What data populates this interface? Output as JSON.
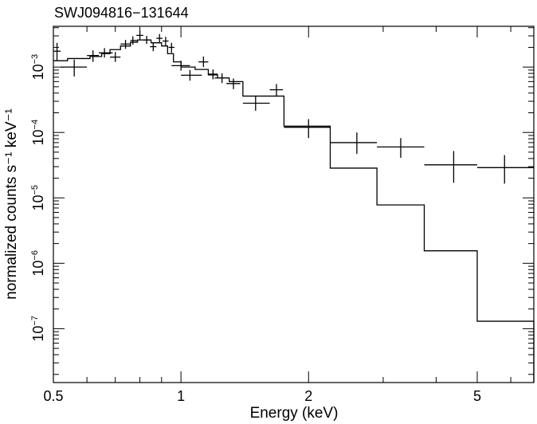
{
  "chart_data": {
    "type": "scatter",
    "title": "SWJ094816−131644",
    "xlabel": "Energy (keV)",
    "ylabel": "normalized counts s⁻¹ keV⁻¹",
    "xscale": "log",
    "yscale": "log",
    "xlim": [
      0.5,
      6.8
    ],
    "ylim": [
      1.5e-08,
      0.0042
    ],
    "x_ticks": [
      {
        "value": 0.5,
        "label": "0.5"
      },
      {
        "value": 1,
        "label": "1"
      },
      {
        "value": 2,
        "label": "2"
      },
      {
        "value": 5,
        "label": "5"
      }
    ],
    "y_ticks": [
      {
        "value": 1e-07,
        "base": "10",
        "exp": "−7"
      },
      {
        "value": 1e-06,
        "base": "10",
        "exp": "−6"
      },
      {
        "value": 1e-05,
        "base": "10",
        "exp": "−5"
      },
      {
        "value": 0.0001,
        "base": "10",
        "exp": "−4"
      },
      {
        "value": 0.001,
        "base": "10",
        "exp": "−3"
      }
    ],
    "series": [
      {
        "kind": "data",
        "points": [
          {
            "x": 0.51,
            "xerr": [
              0.5,
              0.52
            ],
            "y": 0.00175,
            "yerr": [
              0.00125,
              0.00235
            ]
          },
          {
            "x": 0.56,
            "xerr": [
              0.52,
              0.6
            ],
            "y": 0.001,
            "yerr": [
              0.00072,
              0.0013
            ]
          },
          {
            "x": 0.62,
            "xerr": [
              0.6,
              0.64
            ],
            "y": 0.0015,
            "yerr": [
              0.0012,
              0.0018
            ]
          },
          {
            "x": 0.66,
            "xerr": [
              0.64,
              0.69
            ],
            "y": 0.00165,
            "yerr": [
              0.0014,
              0.00195
            ]
          },
          {
            "x": 0.7,
            "xerr": [
              0.68,
              0.72
            ],
            "y": 0.00142,
            "yerr": [
              0.0012,
              0.0017
            ]
          },
          {
            "x": 0.74,
            "xerr": [
              0.72,
              0.76
            ],
            "y": 0.00225,
            "yerr": [
              0.0019,
              0.0026
            ]
          },
          {
            "x": 0.77,
            "xerr": [
              0.76,
              0.79
            ],
            "y": 0.00255,
            "yerr": [
              0.0022,
              0.00295
            ]
          },
          {
            "x": 0.8,
            "xerr": [
              0.785,
              0.815
            ],
            "y": 0.00305,
            "yerr": [
              0.0026,
              0.0036
            ]
          },
          {
            "x": 0.83,
            "xerr": [
              0.815,
              0.845
            ],
            "y": 0.0026,
            "yerr": [
              0.00225,
              0.003
            ]
          },
          {
            "x": 0.86,
            "xerr": [
              0.845,
              0.875
            ],
            "y": 0.00205,
            "yerr": [
              0.00175,
              0.0024
            ]
          },
          {
            "x": 0.89,
            "xerr": [
              0.875,
              0.905
            ],
            "y": 0.00275,
            "yerr": [
              0.00235,
              0.0032
            ]
          },
          {
            "x": 0.92,
            "xerr": [
              0.905,
              0.935
            ],
            "y": 0.0025,
            "yerr": [
              0.0021,
              0.0029
            ]
          },
          {
            "x": 0.95,
            "xerr": [
              0.935,
              0.965
            ],
            "y": 0.002,
            "yerr": [
              0.00165,
              0.00235
            ]
          },
          {
            "x": 1.0,
            "xerr": [
              0.95,
              1.05
            ],
            "y": 0.00105,
            "yerr": [
              0.00088,
              0.00125
            ]
          },
          {
            "x": 1.05,
            "xerr": [
              1.0,
              1.12
            ],
            "y": 0.00075,
            "yerr": [
              0.00062,
              0.0009
            ]
          },
          {
            "x": 1.13,
            "xerr": [
              1.1,
              1.16
            ],
            "y": 0.0012,
            "yerr": [
              0.001,
              0.00145
            ]
          },
          {
            "x": 1.19,
            "xerr": [
              1.16,
              1.22
            ],
            "y": 0.00078,
            "yerr": [
              0.00065,
              0.00092
            ]
          },
          {
            "x": 1.25,
            "xerr": [
              1.2,
              1.3
            ],
            "y": 0.00068,
            "yerr": [
              0.00057,
              0.0008
            ]
          },
          {
            "x": 1.33,
            "xerr": [
              1.28,
              1.38
            ],
            "y": 0.00056,
            "yerr": [
              0.00046,
              0.00067
            ]
          },
          {
            "x": 1.5,
            "xerr": [
              1.4,
              1.62
            ],
            "y": 0.00028,
            "yerr": [
              0.000215,
              0.00036
            ]
          },
          {
            "x": 1.68,
            "xerr": [
              1.62,
              1.74
            ],
            "y": 0.00045,
            "yerr": [
              0.00036,
              0.00055
            ]
          },
          {
            "x": 2.0,
            "xerr": [
              1.75,
              2.25
            ],
            "y": 0.00012,
            "yerr": [
              8.2e-05,
              0.00016
            ]
          },
          {
            "x": 2.6,
            "xerr": [
              2.25,
              2.9
            ],
            "y": 7e-05,
            "yerr": [
              4.7e-05,
              0.0001
            ]
          },
          {
            "x": 3.3,
            "xerr": [
              2.9,
              3.75
            ],
            "y": 6e-05,
            "yerr": [
              4.1e-05,
              8.2e-05
            ]
          },
          {
            "x": 4.4,
            "xerr": [
              3.75,
              5.0
            ],
            "y": 3.2e-05,
            "yerr": [
              1.7e-05,
              5.2e-05
            ]
          },
          {
            "x": 5.8,
            "xerr": [
              5.0,
              6.8
            ],
            "y": 2.9e-05,
            "yerr": [
              1.65e-05,
              4.5e-05
            ]
          }
        ]
      },
      {
        "kind": "model",
        "steps": [
          {
            "x0": 0.5,
            "x1": 0.54,
            "y": 0.00125
          },
          {
            "x0": 0.54,
            "x1": 0.61,
            "y": 0.00135
          },
          {
            "x0": 0.61,
            "x1": 0.65,
            "y": 0.00145
          },
          {
            "x0": 0.65,
            "x1": 0.68,
            "y": 0.0016
          },
          {
            "x0": 0.68,
            "x1": 0.72,
            "y": 0.00185
          },
          {
            "x0": 0.72,
            "x1": 0.76,
            "y": 0.0021
          },
          {
            "x0": 0.76,
            "x1": 0.79,
            "y": 0.0024
          },
          {
            "x0": 0.79,
            "x1": 0.85,
            "y": 0.0026
          },
          {
            "x0": 0.85,
            "x1": 0.9,
            "y": 0.00235
          },
          {
            "x0": 0.9,
            "x1": 0.93,
            "y": 0.0021
          },
          {
            "x0": 0.93,
            "x1": 0.96,
            "y": 0.0016
          },
          {
            "x0": 0.96,
            "x1": 1.0,
            "y": 0.0012
          },
          {
            "x0": 1.0,
            "x1": 1.08,
            "y": 0.001
          },
          {
            "x0": 1.08,
            "x1": 1.16,
            "y": 0.00092
          },
          {
            "x0": 1.16,
            "x1": 1.22,
            "y": 0.00076
          },
          {
            "x0": 1.22,
            "x1": 1.3,
            "y": 0.00068
          },
          {
            "x0": 1.3,
            "x1": 1.4,
            "y": 0.0006
          },
          {
            "x0": 1.4,
            "x1": 1.75,
            "y": 0.00036
          },
          {
            "x0": 1.75,
            "x1": 2.25,
            "y": 0.000125
          },
          {
            "x0": 2.25,
            "x1": 2.9,
            "y": 2.85e-05
          },
          {
            "x0": 2.9,
            "x1": 3.75,
            "y": 7.8e-06
          },
          {
            "x0": 3.75,
            "x1": 5.0,
            "y": 1.55e-06
          },
          {
            "x0": 5.0,
            "x1": 6.8,
            "y": 1.3e-07
          }
        ],
        "end_y": 1.5e-08
      }
    ]
  }
}
